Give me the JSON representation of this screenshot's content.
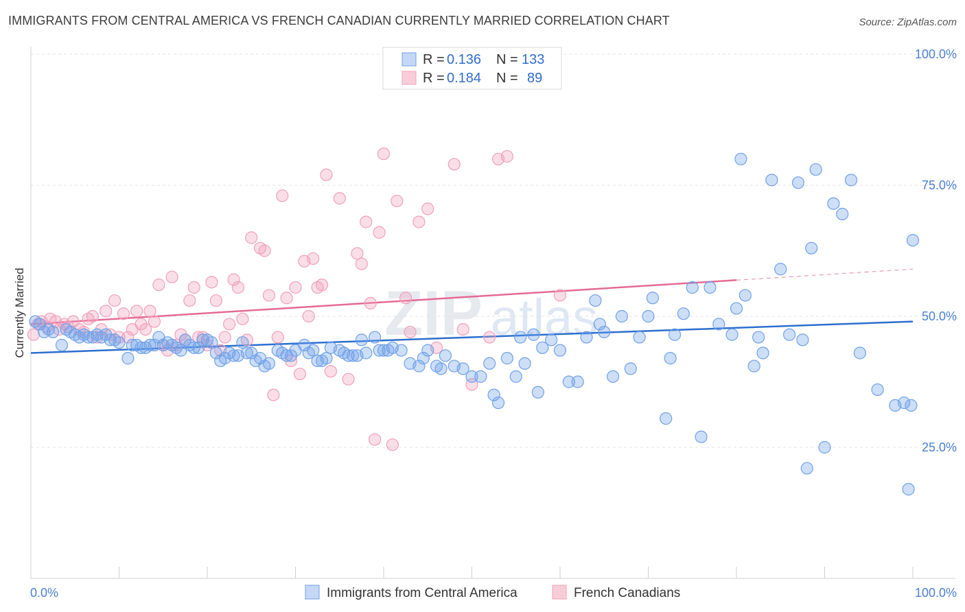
{
  "title": "IMMIGRANTS FROM CENTRAL AMERICA VS FRENCH CANADIAN CURRENTLY MARRIED CORRELATION CHART",
  "source": "Source: ZipAtlas.com",
  "watermark": {
    "zip": "ZIP",
    "atlas": "atlas"
  },
  "colors": {
    "blue": "#6fa1e8",
    "blue_line": "#2b6fcf",
    "pink": "#f0a0bb",
    "pink_line": "#e46a93",
    "axis_text": "#4a7fd0"
  },
  "legend": {
    "rows": [
      {
        "r_label": "R =",
        "r_value": "0.136",
        "n_label": "N =",
        "n_value": "133"
      },
      {
        "r_label": "R =",
        "r_value": "0.184",
        "n_label": "N =",
        "n_value": "89"
      }
    ]
  },
  "chart_data": {
    "type": "scatter",
    "title": "IMMIGRANTS FROM CENTRAL AMERICA VS FRENCH CANADIAN CURRENTLY MARRIED CORRELATION CHART",
    "xlabel": "",
    "ylabel": "Currently Married",
    "xlim": [
      0,
      100
    ],
    "ylim": [
      0,
      100
    ],
    "x_tick_labels": [
      "0.0%",
      "100.0%"
    ],
    "y_tick_labels": [
      "25.0%",
      "50.0%",
      "75.0%",
      "100.0%"
    ],
    "y_tick_values": [
      25,
      50,
      75,
      100
    ],
    "series": [
      {
        "name": "Immigrants from Central America",
        "color": "#6fa1e8",
        "R": 0.136,
        "N": 133,
        "trend": {
          "x": [
            0,
            100
          ],
          "y": [
            43.0,
            49.0
          ],
          "solid_to": 100
        },
        "points": [
          [
            0.5,
            49
          ],
          [
            1,
            48.5
          ],
          [
            1.5,
            47
          ],
          [
            2,
            47.5
          ],
          [
            2.5,
            47
          ],
          [
            3.5,
            44.5
          ],
          [
            4,
            47.5
          ],
          [
            4.5,
            47
          ],
          [
            5,
            46.5
          ],
          [
            5.5,
            46
          ],
          [
            6,
            46.5
          ],
          [
            6.5,
            46
          ],
          [
            7,
            46
          ],
          [
            7.5,
            46.5
          ],
          [
            8,
            46
          ],
          [
            8.5,
            46.5
          ],
          [
            9,
            45.5
          ],
          [
            9.5,
            45.5
          ],
          [
            10,
            45
          ],
          [
            11,
            42
          ],
          [
            11.5,
            44.5
          ],
          [
            12,
            44.5
          ],
          [
            12.5,
            44
          ],
          [
            13,
            44
          ],
          [
            13.5,
            44.5
          ],
          [
            14,
            44.5
          ],
          [
            14.5,
            46
          ],
          [
            15,
            44.5
          ],
          [
            15.5,
            45
          ],
          [
            16,
            44.5
          ],
          [
            16.5,
            44
          ],
          [
            17,
            43.5
          ],
          [
            17.5,
            45.5
          ],
          [
            18,
            44.5
          ],
          [
            18.5,
            44
          ],
          [
            19,
            44
          ],
          [
            19.5,
            45.5
          ],
          [
            20,
            45.5
          ],
          [
            20.5,
            45
          ],
          [
            21,
            43
          ],
          [
            21.5,
            41.5
          ],
          [
            22,
            42
          ],
          [
            22.5,
            43
          ],
          [
            23,
            42.5
          ],
          [
            23.5,
            42.5
          ],
          [
            24,
            45
          ],
          [
            24.5,
            43
          ],
          [
            25,
            43
          ],
          [
            26,
            42
          ],
          [
            26.5,
            40.5
          ],
          [
            27,
            41
          ],
          [
            28,
            43.5
          ],
          [
            28.5,
            43
          ],
          [
            29,
            42.5
          ],
          [
            29.5,
            42.5
          ],
          [
            30,
            43.5
          ],
          [
            31,
            44.5
          ],
          [
            31.5,
            43
          ],
          [
            32,
            43.5
          ],
          [
            32.5,
            41.5
          ],
          [
            33,
            41.5
          ],
          [
            33.5,
            42
          ],
          [
            34,
            44
          ],
          [
            35,
            43.5
          ],
          [
            35.5,
            43
          ],
          [
            36,
            42.5
          ],
          [
            36.5,
            42.5
          ],
          [
            37,
            42.5
          ],
          [
            38,
            43
          ],
          [
            39,
            46
          ],
          [
            39.5,
            43.5
          ],
          [
            40,
            43.5
          ],
          [
            40.5,
            43.5
          ],
          [
            41,
            44
          ],
          [
            42,
            43.5
          ],
          [
            43,
            41
          ],
          [
            44,
            40.5
          ],
          [
            44.5,
            42
          ],
          [
            45,
            43.5
          ],
          [
            46,
            40.5
          ],
          [
            46.5,
            40
          ],
          [
            47,
            42.5
          ],
          [
            48,
            40.5
          ],
          [
            49,
            40
          ],
          [
            50,
            38.5
          ],
          [
            51,
            38.5
          ],
          [
            52,
            41
          ],
          [
            52.5,
            35
          ],
          [
            53,
            33.5
          ],
          [
            54,
            42
          ],
          [
            55,
            38.5
          ],
          [
            56,
            41
          ],
          [
            57,
            46.5
          ],
          [
            57.5,
            35.5
          ],
          [
            58,
            44
          ],
          [
            59,
            45.5
          ],
          [
            60,
            43.5
          ],
          [
            61,
            37.5
          ],
          [
            62,
            37.5
          ],
          [
            63,
            46
          ],
          [
            64,
            53
          ],
          [
            64.5,
            48.5
          ],
          [
            65,
            47
          ],
          [
            66,
            38.5
          ],
          [
            67,
            50
          ],
          [
            68,
            40
          ],
          [
            69,
            46
          ],
          [
            70,
            50
          ],
          [
            70.5,
            53.5
          ],
          [
            72,
            30.5
          ],
          [
            72.5,
            42
          ],
          [
            73,
            46.5
          ],
          [
            74,
            50.5
          ],
          [
            75,
            55.5
          ],
          [
            76,
            27
          ],
          [
            77,
            55.5
          ],
          [
            78,
            48.5
          ],
          [
            79.5,
            46.5
          ],
          [
            80,
            51.5
          ],
          [
            81,
            54
          ],
          [
            82,
            40.5
          ],
          [
            82.5,
            46
          ],
          [
            83,
            43
          ],
          [
            84,
            76
          ],
          [
            85,
            59
          ],
          [
            86,
            46.5
          ],
          [
            87,
            75.5
          ],
          [
            87.5,
            45.5
          ],
          [
            88,
            21
          ],
          [
            88.5,
            63
          ],
          [
            89,
            78
          ],
          [
            90,
            25
          ],
          [
            91,
            71.5
          ],
          [
            92,
            69.5
          ],
          [
            93,
            76
          ],
          [
            94,
            43
          ],
          [
            96,
            36
          ],
          [
            98,
            33
          ],
          [
            99,
            33.5
          ],
          [
            99.5,
            17
          ],
          [
            99.8,
            33
          ],
          [
            100,
            64.5
          ],
          [
            25.5,
            41.5
          ],
          [
            37.5,
            45.5
          ],
          [
            55.5,
            46
          ],
          [
            80.5,
            80
          ]
        ]
      },
      {
        "name": "French Canadians",
        "color": "#f0a0bb",
        "R": 0.184,
        "N": 89,
        "trend": {
          "x": [
            0,
            100
          ],
          "y": [
            48.5,
            59.0
          ],
          "solid_to": 80
        },
        "points": [
          [
            0.3,
            46.5
          ],
          [
            0.8,
            48.5
          ],
          [
            1.2,
            49
          ],
          [
            1.8,
            48
          ],
          [
            2.2,
            49.5
          ],
          [
            2.8,
            49
          ],
          [
            3.2,
            47.5
          ],
          [
            3.8,
            48.5
          ],
          [
            4.2,
            48
          ],
          [
            4.8,
            49
          ],
          [
            5.5,
            47.5
          ],
          [
            6,
            47
          ],
          [
            6.5,
            49.5
          ],
          [
            7,
            50
          ],
          [
            7.5,
            46
          ],
          [
            8,
            47.5
          ],
          [
            8.5,
            51
          ],
          [
            9,
            46.5
          ],
          [
            9.5,
            53
          ],
          [
            10,
            46
          ],
          [
            10.5,
            50.5
          ],
          [
            11,
            46
          ],
          [
            11.5,
            47.5
          ],
          [
            12,
            51
          ],
          [
            12.5,
            48.5
          ],
          [
            13,
            47.5
          ],
          [
            13.5,
            51
          ],
          [
            14,
            49
          ],
          [
            14.5,
            56
          ],
          [
            15,
            44.5
          ],
          [
            15.5,
            43.5
          ],
          [
            16,
            57.5
          ],
          [
            16.5,
            44.5
          ],
          [
            17,
            46.5
          ],
          [
            17.5,
            45.5
          ],
          [
            18,
            53
          ],
          [
            18.5,
            55.5
          ],
          [
            19,
            46
          ],
          [
            19.5,
            46
          ],
          [
            20,
            44.5
          ],
          [
            20.5,
            56.5
          ],
          [
            21,
            53
          ],
          [
            21.5,
            43.5
          ],
          [
            22,
            46
          ],
          [
            22.5,
            48.5
          ],
          [
            23,
            57
          ],
          [
            23.5,
            55.5
          ],
          [
            24,
            49.5
          ],
          [
            24.5,
            45.5
          ],
          [
            25,
            65
          ],
          [
            26,
            63
          ],
          [
            26.5,
            62.5
          ],
          [
            27,
            54
          ],
          [
            27.5,
            35
          ],
          [
            28,
            46
          ],
          [
            28.5,
            73
          ],
          [
            29,
            53.5
          ],
          [
            29.5,
            41.5
          ],
          [
            30,
            55.5
          ],
          [
            30.5,
            39
          ],
          [
            31,
            60.5
          ],
          [
            31.5,
            50
          ],
          [
            32,
            61
          ],
          [
            32.5,
            55.5
          ],
          [
            33,
            56
          ],
          [
            33.5,
            77
          ],
          [
            34,
            39.5
          ],
          [
            35,
            72.5
          ],
          [
            36,
            38
          ],
          [
            37,
            62
          ],
          [
            37.5,
            60
          ],
          [
            38,
            68
          ],
          [
            38.5,
            52.5
          ],
          [
            39,
            26.5
          ],
          [
            39.5,
            66
          ],
          [
            40,
            81
          ],
          [
            41,
            25.5
          ],
          [
            41.5,
            72
          ],
          [
            42.5,
            53.5
          ],
          [
            43,
            47
          ],
          [
            44,
            68
          ],
          [
            45,
            70.5
          ],
          [
            46,
            44
          ],
          [
            48,
            79
          ],
          [
            49,
            47.5
          ],
          [
            50,
            37
          ],
          [
            52,
            46
          ],
          [
            53,
            80
          ],
          [
            54,
            80.5
          ],
          [
            60,
            54
          ]
        ]
      }
    ]
  },
  "bottom_legend": [
    {
      "label": "Immigrants from Central America"
    },
    {
      "label": "French Canadians"
    }
  ]
}
